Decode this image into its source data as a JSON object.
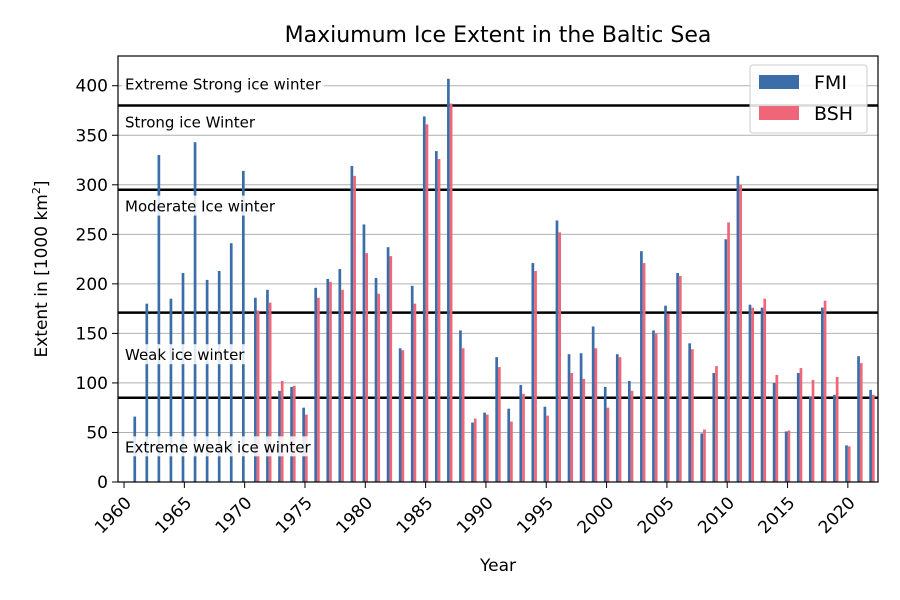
{
  "chart_data": {
    "type": "bar",
    "title": "Maxiumum Ice Extent in the Baltic Sea",
    "xlabel": "Year",
    "ylabel_main": "Extent in [1000 km",
    "ylabel_sup": "2",
    "ylabel_end": "]",
    "xlim": [
      1959.5,
      2022.5
    ],
    "ylim": [
      0,
      430
    ],
    "xticks": [
      1960,
      1965,
      1970,
      1975,
      1980,
      1985,
      1990,
      1995,
      2000,
      2005,
      2010,
      2015,
      2020
    ],
    "yticks": [
      0,
      50,
      100,
      150,
      200,
      250,
      300,
      350,
      400
    ],
    "grid": "y",
    "legend_position": "top-right",
    "thresholds": [
      85,
      171,
      295,
      380
    ],
    "zones": [
      {
        "label": "Extreme Strong ice winter",
        "y": 401
      },
      {
        "label": "Strong ice Winter",
        "y": 363
      },
      {
        "label": "Moderate Ice winter",
        "y": 278
      },
      {
        "label": "Weak ice winter",
        "y": 128
      },
      {
        "label": "Extreme weak ice winter",
        "y": 35
      }
    ],
    "series": [
      {
        "name": "FMI",
        "color": "#3b6ea8",
        "x": [
          1961,
          1962,
          1963,
          1964,
          1965,
          1966,
          1967,
          1968,
          1969,
          1970,
          1971,
          1972,
          1973,
          1974,
          1975,
          1976,
          1977,
          1978,
          1979,
          1980,
          1981,
          1982,
          1983,
          1984,
          1985,
          1986,
          1987,
          1988,
          1989,
          1990,
          1991,
          1992,
          1993,
          1994,
          1995,
          1996,
          1997,
          1998,
          1999,
          2000,
          2001,
          2002,
          2003,
          2004,
          2005,
          2006,
          2007,
          2008,
          2009,
          2010,
          2011,
          2012,
          2013,
          2014,
          2015,
          2016,
          2017,
          2018,
          2019,
          2020,
          2021,
          2022
        ],
        "values": [
          66,
          180,
          330,
          185,
          211,
          343,
          204,
          213,
          241,
          314,
          186,
          194,
          92,
          96,
          75,
          196,
          205,
          215,
          319,
          260,
          206,
          237,
          135,
          198,
          369,
          334,
          407,
          153,
          60,
          70,
          126,
          74,
          98,
          221,
          76,
          264,
          129,
          130,
          157,
          96,
          129,
          102,
          233,
          153,
          178,
          211,
          140,
          49,
          110,
          245,
          309,
          179,
          176,
          100,
          51,
          110,
          86,
          176,
          88,
          37,
          127,
          93
        ]
      },
      {
        "name": "BSH",
        "color": "#ee6677",
        "x": [
          1971,
          1972,
          1973,
          1974,
          1975,
          1976,
          1977,
          1978,
          1979,
          1980,
          1981,
          1982,
          1983,
          1984,
          1985,
          1986,
          1987,
          1988,
          1989,
          1990,
          1991,
          1992,
          1993,
          1994,
          1995,
          1996,
          1997,
          1998,
          1999,
          2000,
          2001,
          2002,
          2003,
          2004,
          2005,
          2006,
          2007,
          2008,
          2009,
          2010,
          2011,
          2012,
          2013,
          2014,
          2015,
          2016,
          2017,
          2018,
          2019,
          2020,
          2021,
          2022
        ],
        "values": [
          173,
          181,
          102,
          97,
          68,
          186,
          202,
          194,
          309,
          231,
          190,
          228,
          133,
          180,
          361,
          326,
          382,
          135,
          64,
          68,
          116,
          61,
          89,
          213,
          67,
          252,
          110,
          104,
          135,
          75,
          126,
          92,
          221,
          150,
          170,
          208,
          134,
          53,
          117,
          262,
          300,
          176,
          185,
          108,
          52,
          115,
          103,
          183,
          106,
          36,
          120,
          88
        ]
      }
    ]
  }
}
